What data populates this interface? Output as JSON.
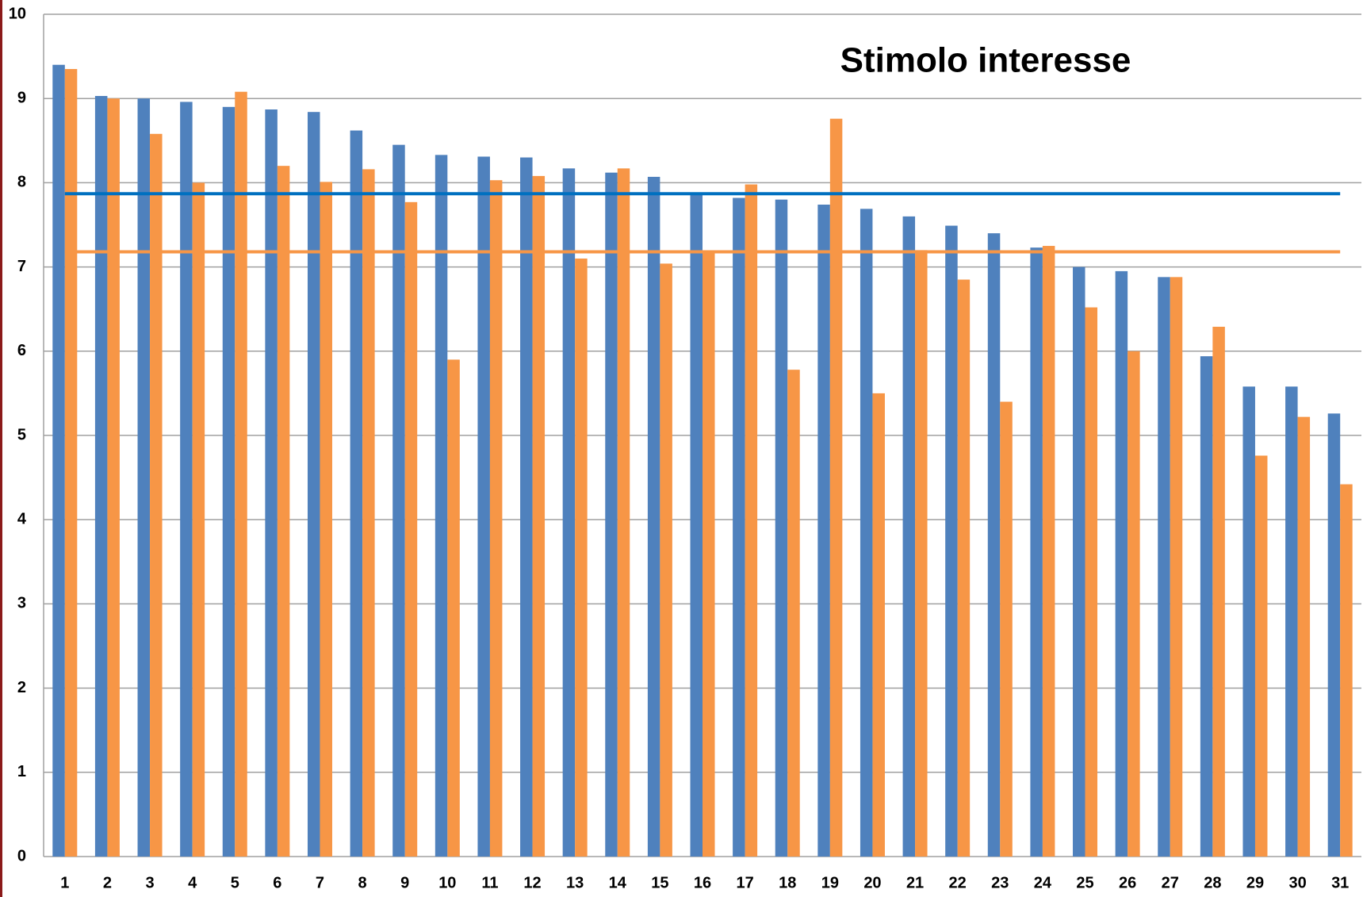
{
  "chart_data": {
    "type": "bar",
    "title": "Stimolo interesse",
    "categories": [
      "1",
      "2",
      "3",
      "4",
      "5",
      "6",
      "7",
      "8",
      "9",
      "10",
      "11",
      "12",
      "13",
      "14",
      "15",
      "16",
      "17",
      "18",
      "19",
      "20",
      "21",
      "22",
      "23",
      "24",
      "25",
      "26",
      "27",
      "28",
      "29",
      "30",
      "31"
    ],
    "series": [
      {
        "color": "#4f81bd",
        "values": [
          9.4,
          9.03,
          9.0,
          8.96,
          8.9,
          8.87,
          8.84,
          8.62,
          8.45,
          8.33,
          8.31,
          8.3,
          8.17,
          8.12,
          8.07,
          7.87,
          7.82,
          7.8,
          7.74,
          7.69,
          7.6,
          7.49,
          7.4,
          7.23,
          7.0,
          6.95,
          6.88,
          5.94,
          5.58,
          5.58,
          5.26
        ]
      },
      {
        "color": "#f79646",
        "values": [
          9.35,
          9.0,
          8.58,
          8.0,
          9.08,
          8.2,
          8.01,
          8.16,
          7.77,
          5.9,
          8.03,
          8.08,
          7.1,
          8.17,
          7.04,
          7.18,
          7.98,
          5.78,
          8.76,
          5.5,
          7.2,
          6.85,
          5.4,
          7.25,
          6.52,
          6.0,
          6.88,
          6.29,
          4.76,
          5.22,
          4.42
        ]
      }
    ],
    "reference_lines": [
      {
        "value": 7.87,
        "color": "#0070c0"
      },
      {
        "value": 7.18,
        "color": "#f79646"
      }
    ],
    "ylim": [
      0,
      10
    ],
    "yticks": [
      0,
      1,
      2,
      3,
      4,
      5,
      6,
      7,
      8,
      9,
      10
    ],
    "grid": true
  }
}
